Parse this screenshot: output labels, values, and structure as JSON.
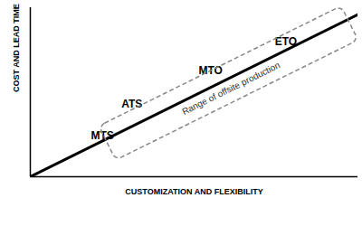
{
  "chart_data": {
    "type": "line",
    "x_label": "CUSTOMIZATION AND FLEXIBILITY",
    "y_label": "COST AND LEAD TIME",
    "x": [
      0,
      100
    ],
    "values": [
      0,
      96
    ],
    "color": "#000000",
    "xlim": [
      0,
      100
    ],
    "ylim": [
      0,
      100
    ],
    "xticks": [],
    "yticks": [],
    "tick_labels": false,
    "grid": false,
    "annotations": [
      {
        "text": "MTS",
        "x": 22,
        "y": 24
      },
      {
        "text": "ATS",
        "x": 31,
        "y": 43
      },
      {
        "text": "MTO",
        "x": 55,
        "y": 63
      },
      {
        "text": "ETO",
        "x": 78,
        "y": 80
      }
    ],
    "range": {
      "label": "Range of offsite production",
      "x": [
        25,
        95
      ],
      "color": "#888888",
      "line_style": "dashed"
    }
  }
}
